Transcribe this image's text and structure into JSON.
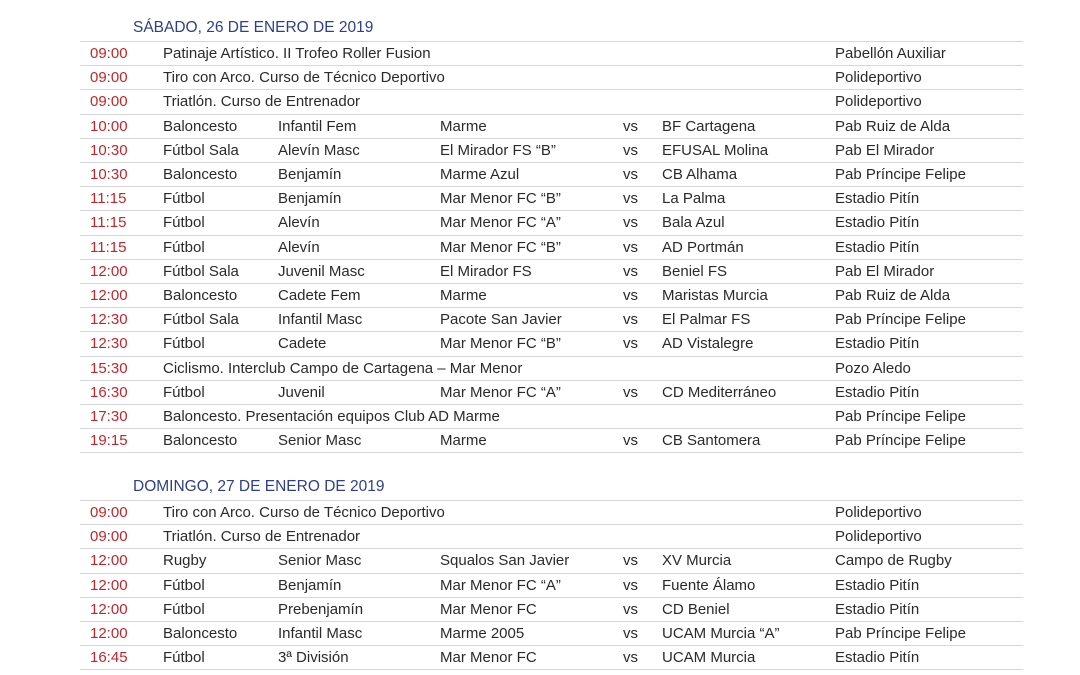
{
  "days": [
    {
      "title": "SÁBADO, 26 DE ENERO DE 2019",
      "events": [
        {
          "time": "09:00",
          "desc": "Patinaje Artístico. II Trofeo Roller Fusion",
          "venue": "Pabellón Auxiliar"
        },
        {
          "time": "09:00",
          "desc": "Tiro con Arco. Curso de Técnico Deportivo",
          "venue": "Polideportivo"
        },
        {
          "time": "09:00",
          "desc": "Triatlón. Curso de Entrenador",
          "venue": "Polideportivo"
        },
        {
          "time": "10:00",
          "sport": "Baloncesto",
          "category": "Infantil Fem",
          "home": "Marme",
          "vs": "vs",
          "away": "BF Cartagena",
          "venue": "Pab Ruiz de Alda"
        },
        {
          "time": "10:30",
          "sport": "Fútbol Sala",
          "category": "Alevín Masc",
          "home": "El Mirador FS “B”",
          "vs": "vs",
          "away": "EFUSAL Molina",
          "venue": "Pab El Mirador"
        },
        {
          "time": "10:30",
          "sport": "Baloncesto",
          "category": "Benjamín",
          "home": "Marme Azul",
          "vs": "vs",
          "away": "CB Alhama",
          "venue": "Pab Príncipe Felipe"
        },
        {
          "time": "11:15",
          "sport": "Fútbol",
          "category": "Benjamín",
          "home": "Mar Menor FC “B”",
          "vs": "vs",
          "away": "La Palma",
          "venue": "Estadio Pitín"
        },
        {
          "time": "11:15",
          "sport": "Fútbol",
          "category": "Alevín",
          "home": "Mar Menor FC “A”",
          "vs": "vs",
          "away": "Bala Azul",
          "venue": "Estadio Pitín"
        },
        {
          "time": "11:15",
          "sport": "Fútbol",
          "category": "Alevín",
          "home": "Mar Menor FC “B”",
          "vs": "vs",
          "away": "AD Portmán",
          "venue": "Estadio Pitín"
        },
        {
          "time": "12:00",
          "sport": "Fútbol Sala",
          "category": "Juvenil Masc",
          "home": "El Mirador FS",
          "vs": "vs",
          "away": "Beniel FS",
          "venue": "Pab El Mirador"
        },
        {
          "time": "12:00",
          "sport": "Baloncesto",
          "category": "Cadete Fem",
          "home": "Marme",
          "vs": "vs",
          "away": "Maristas Murcia",
          "venue": "Pab Ruiz de Alda"
        },
        {
          "time": "12:30",
          "sport": "Fútbol Sala",
          "category": "Infantil Masc",
          "home": "Pacote San Javier",
          "vs": "vs",
          "away": "El Palmar FS",
          "venue": "Pab Príncipe Felipe"
        },
        {
          "time": "12:30",
          "sport": "Fútbol",
          "category": "Cadete",
          "home": "Mar Menor FC “B”",
          "vs": "vs",
          "away": "AD Vistalegre",
          "venue": "Estadio Pitín"
        },
        {
          "time": "15:30",
          "desc": "Ciclismo. Interclub Campo de Cartagena – Mar Menor",
          "venue": "Pozo Aledo"
        },
        {
          "time": "16:30",
          "sport": "Fútbol",
          "category": "Juvenil",
          "home": "Mar Menor FC “A”",
          "vs": "vs",
          "away": "CD Mediterráneo",
          "venue": "Estadio Pitín"
        },
        {
          "time": "17:30",
          "desc": "Baloncesto. Presentación equipos Club AD Marme",
          "venue": "Pab Príncipe Felipe"
        },
        {
          "time": "19:15",
          "sport": "Baloncesto",
          "category": "Senior Masc",
          "home": "Marme",
          "vs": "vs",
          "away": "CB Santomera",
          "venue": "Pab Príncipe Felipe"
        }
      ]
    },
    {
      "title": "DOMINGO, 27 DE ENERO DE 2019",
      "events": [
        {
          "time": "09:00",
          "desc": "Tiro con Arco. Curso de Técnico Deportivo",
          "venue": "Polideportivo"
        },
        {
          "time": "09:00",
          "desc": "Triatlón. Curso de Entrenador",
          "venue": "Polideportivo"
        },
        {
          "time": "12:00",
          "sport": "Rugby",
          "category": "Senior Masc",
          "home": "Squalos San Javier",
          "vs": "vs",
          "away": "XV Murcia",
          "venue": "Campo de Rugby"
        },
        {
          "time": "12:00",
          "sport": "Fútbol",
          "category": "Benjamín",
          "home": "Mar Menor FC “A”",
          "vs": "vs",
          "away": "Fuente Álamo",
          "venue": "Estadio Pitín"
        },
        {
          "time": "12:00",
          "sport": "Fútbol",
          "category": "Prebenjamín",
          "home": "Mar Menor FC",
          "vs": "vs",
          "away": "CD Beniel",
          "venue": "Estadio Pitín"
        },
        {
          "time": "12:00",
          "sport": "Baloncesto",
          "category": "Infantil Masc",
          "home": "Marme 2005",
          "vs": "vs",
          "away": "UCAM Murcia “A”",
          "venue": "Pab Príncipe Felipe"
        },
        {
          "time": "16:45",
          "sport": "Fútbol",
          "category": "3ª División",
          "home": "Mar Menor FC",
          "vs": "vs",
          "away": "UCAM Murcia",
          "venue": "Estadio Pitín"
        }
      ]
    }
  ],
  "colors": {
    "time": "#c0262b",
    "heading": "#2f3d8f"
  }
}
